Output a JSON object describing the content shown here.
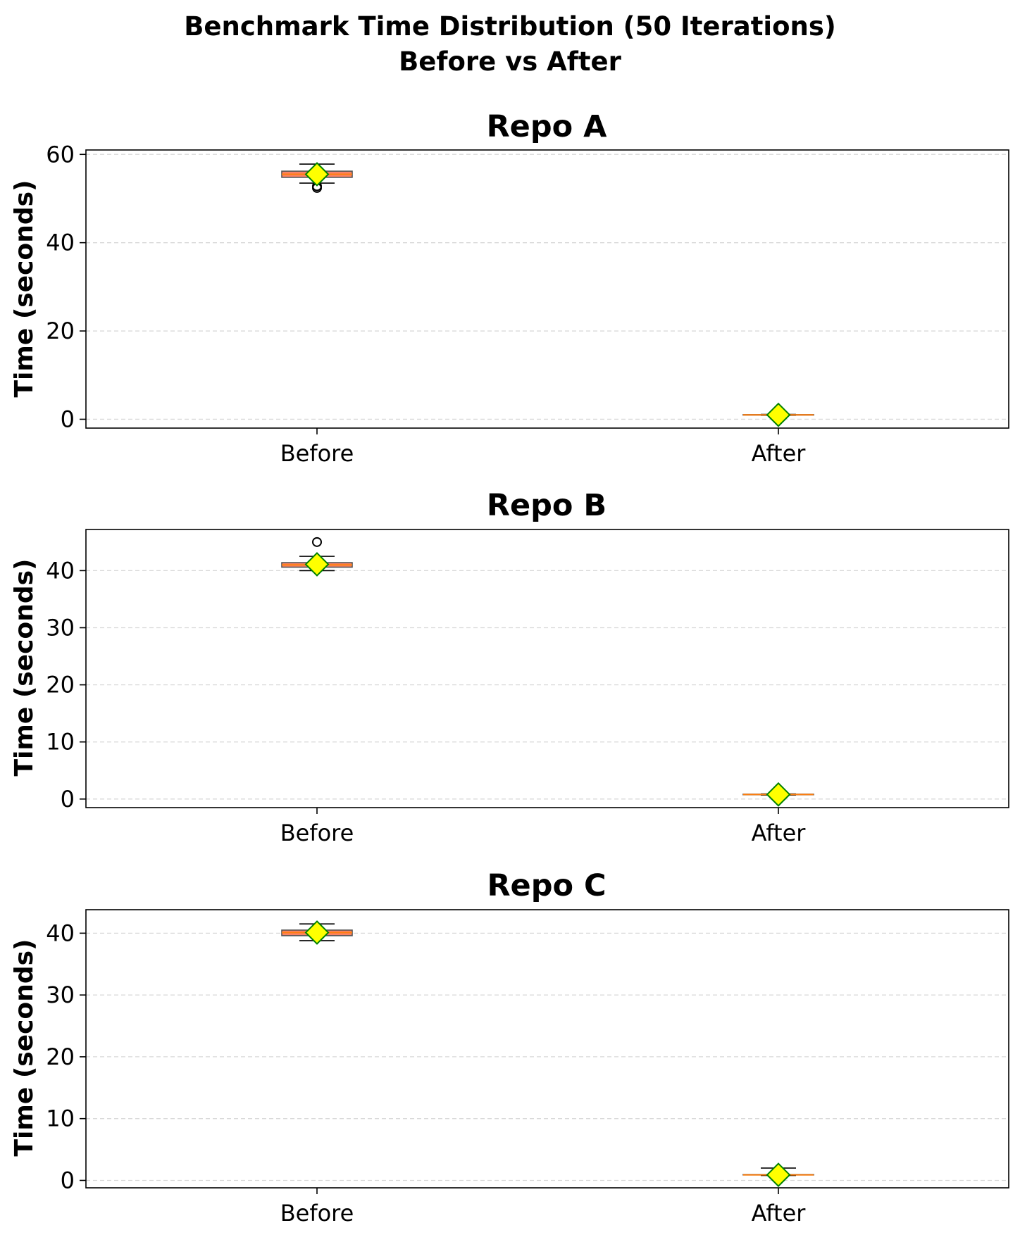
{
  "figure": {
    "title_line1": "Benchmark Time Distribution (50 Iterations)",
    "title_line2": "Before vs After"
  },
  "colors": {
    "box_fill": "#fa8264",
    "box_edge": "#555555",
    "median": "#ff7f0e",
    "whisker": "#000000",
    "mean_fill": "#ffff00",
    "mean_edge": "#008000",
    "outlier_edge": "#000000"
  },
  "chart_data": [
    {
      "type": "box",
      "title": "Repo A",
      "ylabel": "Time (seconds)",
      "categories": [
        "Before",
        "After"
      ],
      "ylim": [
        -2,
        61
      ],
      "yticks": [
        0,
        20,
        40,
        60
      ],
      "grid": "y-dashed",
      "series": [
        {
          "category": "Before",
          "whisker_low": 53.5,
          "q1": 54.8,
          "median": 55.5,
          "q3": 56.2,
          "whisker_high": 57.8,
          "mean": 55.5,
          "outliers": [
            52.4,
            52.8
          ]
        },
        {
          "category": "After",
          "whisker_low": 0.9,
          "q1": 0.95,
          "median": 1.0,
          "q3": 1.05,
          "whisker_high": 1.1,
          "mean": 1.0,
          "outliers": []
        }
      ]
    },
    {
      "type": "box",
      "title": "Repo B",
      "ylabel": "Time (seconds)",
      "categories": [
        "Before",
        "After"
      ],
      "ylim": [
        -1.5,
        47.2
      ],
      "yticks": [
        0,
        10,
        20,
        30,
        40
      ],
      "grid": "y-dashed",
      "series": [
        {
          "category": "Before",
          "whisker_low": 40.0,
          "q1": 40.6,
          "median": 41.0,
          "q3": 41.4,
          "whisker_high": 42.5,
          "mean": 41.1,
          "outliers": [
            45.0
          ]
        },
        {
          "category": "After",
          "whisker_low": 0.7,
          "q1": 0.75,
          "median": 0.8,
          "q3": 0.85,
          "whisker_high": 0.9,
          "mean": 0.8,
          "outliers": []
        }
      ]
    },
    {
      "type": "box",
      "title": "Repo C",
      "ylabel": "Time (seconds)",
      "categories": [
        "Before",
        "After"
      ],
      "ylim": [
        -1.2,
        43.8
      ],
      "yticks": [
        0,
        10,
        20,
        30,
        40
      ],
      "grid": "y-dashed",
      "series": [
        {
          "category": "Before",
          "whisker_low": 38.8,
          "q1": 39.6,
          "median": 40.1,
          "q3": 40.5,
          "whisker_high": 41.5,
          "mean": 40.1,
          "outliers": []
        },
        {
          "category": "After",
          "whisker_low": 0.8,
          "q1": 0.88,
          "median": 0.9,
          "q3": 0.95,
          "whisker_high": 2.0,
          "mean": 0.9,
          "outliers": []
        }
      ]
    }
  ]
}
